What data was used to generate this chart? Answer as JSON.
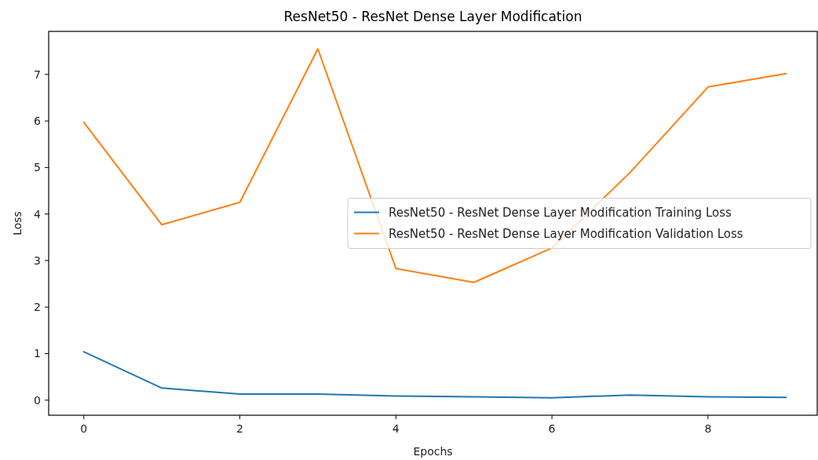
{
  "chart_data": {
    "type": "line",
    "title": "ResNet50 - ResNet Dense Layer Modification",
    "xlabel": "Epochs",
    "ylabel": "Loss",
    "x": [
      0,
      1,
      2,
      3,
      4,
      5,
      6,
      7,
      8,
      9
    ],
    "series": [
      {
        "name": "ResNet50 - ResNet Dense Layer Modification Training Loss",
        "color": "#1f77b4",
        "values": [
          1.04,
          0.26,
          0.13,
          0.13,
          0.09,
          0.07,
          0.05,
          0.11,
          0.07,
          0.06
        ]
      },
      {
        "name": "ResNet50 - ResNet Dense Layer Modification Validation Loss",
        "color": "#ff7f0e",
        "values": [
          5.97,
          3.77,
          4.25,
          7.55,
          2.83,
          2.53,
          3.27,
          4.89,
          6.73,
          7.02
        ]
      }
    ],
    "xlim": [
      -0.45,
      9.4
    ],
    "xticks": [
      0,
      2,
      4,
      6,
      8
    ],
    "ylim": [
      -0.325,
      7.925
    ],
    "yticks": [
      0,
      1,
      2,
      3,
      4,
      5,
      6,
      7
    ],
    "legend": "center right"
  }
}
